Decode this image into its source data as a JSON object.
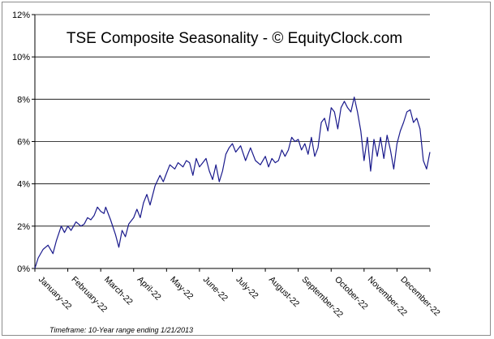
{
  "chart_data": {
    "type": "line",
    "title": "TSE Composite Seasonality - © EquityClock.com",
    "footnote": "Timeframe: 10-Year range ending 1/21/2013",
    "xlabel": "",
    "ylabel": "",
    "ylim": [
      0,
      12
    ],
    "y_ticks": [
      "0%",
      "2%",
      "4%",
      "6%",
      "8%",
      "10%",
      "12%"
    ],
    "x_ticks": [
      "January-22",
      "February-22",
      "March-22",
      "April-22",
      "May-22",
      "June-22",
      "July-22",
      "August-22",
      "September-22",
      "October-22",
      "November-22",
      "December-22"
    ],
    "grid": "horizontal",
    "line_color": "#1a1a8c",
    "series": [
      {
        "x": [
          0,
          0.1,
          0.25,
          0.4,
          0.55,
          0.65,
          0.8,
          0.9,
          1.0,
          1.1,
          1.25,
          1.4,
          1.5,
          1.6,
          1.7,
          1.8,
          1.9,
          2.0,
          2.1,
          2.15,
          2.3,
          2.45,
          2.55,
          2.65,
          2.75,
          2.85,
          3.0,
          3.1,
          3.2,
          3.3,
          3.4,
          3.5,
          3.65,
          3.8,
          3.9,
          4.0,
          4.1,
          4.25,
          4.35,
          4.5,
          4.6,
          4.7,
          4.8,
          4.9,
          5.0,
          5.1,
          5.2,
          5.3,
          5.4,
          5.5,
          5.6,
          5.7,
          5.8,
          5.9,
          6.0,
          6.1,
          6.25,
          6.4,
          6.55,
          6.7,
          6.85,
          7.0,
          7.1,
          7.2,
          7.3,
          7.4,
          7.5,
          7.6,
          7.7,
          7.8,
          7.9,
          8.0,
          8.1,
          8.2,
          8.3,
          8.4,
          8.5,
          8.6,
          8.7,
          8.8,
          8.9,
          9.0,
          9.1,
          9.2,
          9.3,
          9.4,
          9.5,
          9.6,
          9.7,
          9.8,
          9.9,
          10.0,
          10.1,
          10.2,
          10.3,
          10.4,
          10.5,
          10.6,
          10.7,
          10.8,
          10.9,
          11.0,
          11.1,
          11.2,
          11.3,
          11.4,
          11.5,
          11.6,
          11.7,
          11.8,
          11.9,
          12.0
        ],
        "values": [
          0.0,
          0.5,
          0.9,
          1.1,
          0.7,
          1.3,
          2.0,
          1.7,
          2.0,
          1.8,
          2.2,
          2.0,
          2.1,
          2.4,
          2.3,
          2.5,
          2.9,
          2.7,
          2.6,
          2.9,
          2.3,
          1.6,
          1.0,
          1.8,
          1.5,
          2.1,
          2.4,
          2.8,
          2.4,
          3.1,
          3.5,
          3.0,
          3.9,
          4.4,
          4.1,
          4.5,
          4.9,
          4.7,
          5.0,
          4.8,
          5.1,
          5.0,
          4.4,
          5.2,
          4.8,
          5.0,
          5.2,
          4.6,
          4.2,
          4.9,
          4.1,
          4.6,
          5.4,
          5.7,
          5.9,
          5.5,
          5.8,
          5.1,
          5.7,
          5.1,
          4.9,
          5.3,
          4.8,
          5.2,
          5.0,
          5.1,
          5.6,
          5.3,
          5.6,
          6.2,
          6.0,
          6.1,
          5.6,
          5.9,
          5.4,
          6.2,
          5.3,
          5.7,
          6.9,
          7.1,
          6.5,
          7.6,
          7.4,
          6.6,
          7.6,
          7.9,
          7.6,
          7.4,
          8.1,
          7.4,
          6.5,
          5.1,
          6.2,
          4.6,
          6.1,
          5.3,
          6.2,
          5.2,
          6.3,
          5.6,
          4.7,
          5.9,
          6.5,
          6.9,
          7.4,
          7.5,
          6.9,
          7.1,
          6.6,
          5.1,
          4.7,
          5.5
        ]
      }
    ]
  }
}
